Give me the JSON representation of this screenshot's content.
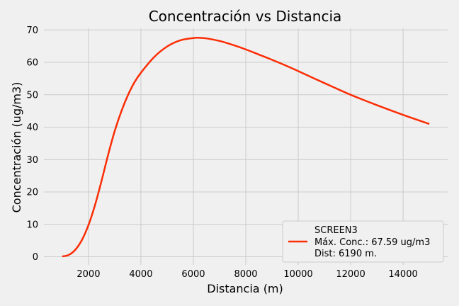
{
  "chart_data": {
    "type": "line",
    "title": "Concentración vs Distancia",
    "xlabel": "Distancia (m)",
    "ylabel": "Concentración (ug/m3)",
    "xlim": [
      300,
      15700
    ],
    "ylim": [
      -2.5,
      70.5
    ],
    "x_ticks": [
      2000,
      4000,
      6000,
      8000,
      10000,
      12000,
      14000
    ],
    "y_ticks": [
      0,
      10,
      20,
      30,
      40,
      50,
      60,
      70
    ],
    "grid": true,
    "legend_position": "lower-right",
    "legend": {
      "title": "SCREEN3",
      "entries": [
        "Máx. Conc.: 67.59 ug/m3",
        "Dist: 6190 m."
      ]
    },
    "series": [
      {
        "name": "Máx. Conc.: 67.59 ug/m3",
        "color": "#fc2d05",
        "x": [
          1000,
          1250,
          1500,
          1750,
          2000,
          2250,
          2500,
          2750,
          3000,
          3250,
          3500,
          3750,
          4000,
          4500,
          5000,
          5500,
          6000,
          6190,
          6500,
          7000,
          7500,
          8000,
          8500,
          9000,
          9500,
          10000,
          11000,
          12000,
          13000,
          14000,
          15000
        ],
        "y": [
          0.1,
          0.6,
          2.2,
          5.2,
          9.8,
          16.0,
          23.5,
          31.5,
          38.8,
          44.8,
          49.8,
          53.8,
          56.8,
          61.6,
          64.9,
          66.8,
          67.5,
          67.59,
          67.4,
          66.6,
          65.4,
          64.0,
          62.4,
          60.8,
          59.1,
          57.3,
          53.6,
          50.0,
          46.8,
          43.8,
          41.0
        ]
      }
    ]
  }
}
